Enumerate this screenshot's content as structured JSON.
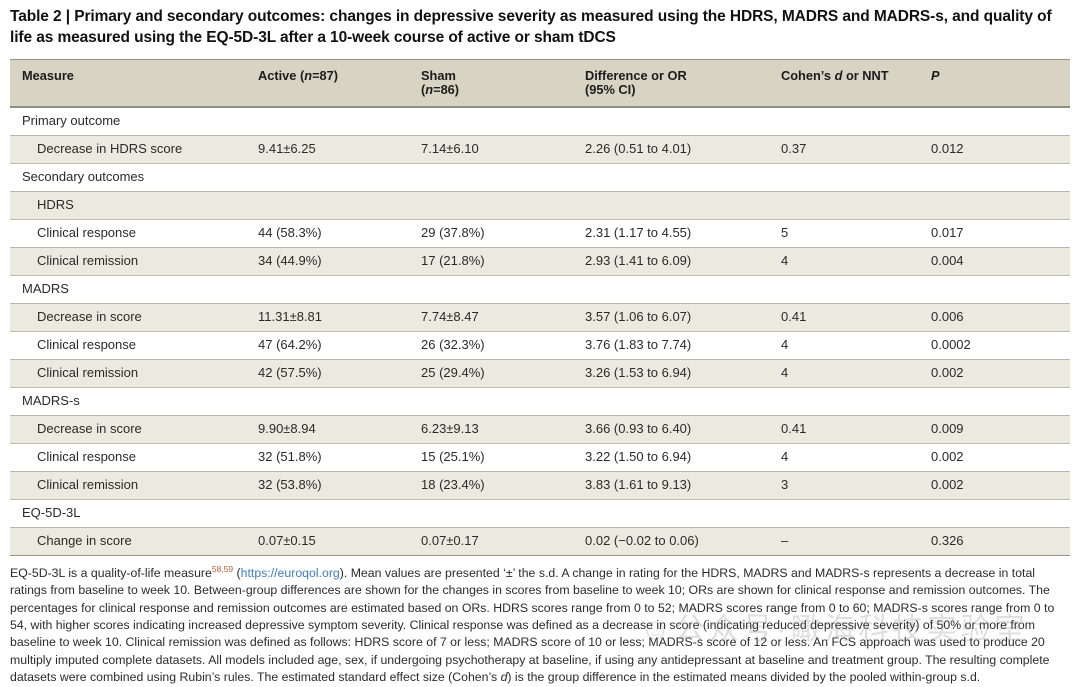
{
  "title": "Table 2 | Primary and secondary outcomes: changes in depressive severity as measured using the HDRS, MADRS and MADRS-s, and quality of life as measured using the EQ-5D-3L after a 10-week course of active or sham tDCS",
  "colors": {
    "header_bg": "#d7d4c3",
    "shaded_row_bg": "#ebeadf",
    "heavy_border": "#8f8e85",
    "light_border": "#bbb9ad",
    "reference_orange": "#c65a3d",
    "link_blue": "#3f7cc0"
  },
  "table": {
    "header": {
      "measure": "Measure",
      "active_pre": "Active (",
      "n1": "n",
      "active_post": "=87)",
      "sham_line1": "Sham",
      "sham_pre": "(",
      "n2": "n",
      "sham_post": "=86)",
      "diff_line1": "Difference or OR",
      "diff_line2": "(95% CI)",
      "cohen_pre": "Cohen’s ",
      "cohen_d": "d",
      "cohen_post": " or NNT",
      "p": "P"
    },
    "rows": [
      {
        "label": "Primary outcome",
        "indent": 0,
        "shaded": false,
        "cells": [
          "",
          "",
          "",
          "",
          ""
        ]
      },
      {
        "label": "Decrease in HDRS score",
        "indent": 1,
        "shaded": true,
        "cells": [
          "9.41±6.25",
          "7.14±6.10",
          "2.26 (0.51 to 4.01)",
          "0.37",
          "0.012"
        ]
      },
      {
        "label": "Secondary outcomes",
        "indent": 0,
        "shaded": false,
        "cells": [
          "",
          "",
          "",
          "",
          ""
        ]
      },
      {
        "label": "HDRS",
        "indent": 1,
        "shaded": true,
        "cells": [
          "",
          "",
          "",
          "",
          ""
        ]
      },
      {
        "label": "Clinical response",
        "indent": 1,
        "shaded": false,
        "cells": [
          "44 (58.3%)",
          "29 (37.8%)",
          "2.31 (1.17 to 4.55)",
          "5",
          "0.017"
        ]
      },
      {
        "label": "Clinical remission",
        "indent": 1,
        "shaded": true,
        "cells": [
          "34 (44.9%)",
          "17 (21.8%)",
          "2.93 (1.41 to 6.09)",
          "4",
          "0.004"
        ]
      },
      {
        "label": "MADRS",
        "indent": 0,
        "shaded": false,
        "cells": [
          "",
          "",
          "",
          "",
          ""
        ]
      },
      {
        "label": "Decrease in score",
        "indent": 1,
        "shaded": true,
        "cells": [
          "11.31±8.81",
          "7.74±8.47",
          "3.57 (1.06 to 6.07)",
          "0.41",
          "0.006"
        ]
      },
      {
        "label": "Clinical response",
        "indent": 1,
        "shaded": false,
        "cells": [
          "47 (64.2%)",
          "26 (32.3%)",
          "3.76 (1.83 to 7.74)",
          "4",
          "0.0002"
        ]
      },
      {
        "label": "Clinical remission",
        "indent": 1,
        "shaded": true,
        "cells": [
          "42 (57.5%)",
          "25 (29.4%)",
          "3.26 (1.53 to 6.94)",
          "4",
          "0.002"
        ]
      },
      {
        "label": "MADRS-s",
        "indent": 0,
        "shaded": false,
        "cells": [
          "",
          "",
          "",
          "",
          ""
        ]
      },
      {
        "label": "Decrease in score",
        "indent": 1,
        "shaded": true,
        "cells": [
          "9.90±8.94",
          "6.23±9.13",
          "3.66 (0.93 to 6.40)",
          "0.41",
          "0.009"
        ]
      },
      {
        "label": "Clinical response",
        "indent": 1,
        "shaded": false,
        "cells": [
          "32 (51.8%)",
          "15 (25.1%)",
          "3.22 (1.50 to 6.94)",
          "4",
          "0.002"
        ]
      },
      {
        "label": "Clinical remission",
        "indent": 1,
        "shaded": true,
        "cells": [
          "32 (53.8%)",
          "18 (23.4%)",
          "3.83 (1.61 to 9.13)",
          "3",
          "0.002"
        ]
      },
      {
        "label": "EQ-5D-3L",
        "indent": 0,
        "shaded": false,
        "cells": [
          "",
          "",
          "",
          "",
          ""
        ]
      },
      {
        "label": "Change in score",
        "indent": 1,
        "shaded": true,
        "cells": [
          "0.07±0.15",
          "0.07±0.17",
          "0.02 (−0.02 to 0.06)",
          "–",
          "0.326"
        ]
      }
    ]
  },
  "footnote": {
    "part1": "EQ-5D-3L is a quality-of-life measure",
    "refs": "58,59",
    "part2": " (",
    "link": "https://euroqol.org",
    "part3": "). Mean values are presented ‘±’ the s.d. A change in rating for the HDRS, MADRS and MADRS-s represents a decrease in total ratings from baseline to week 10. Between-group differences are shown for the changes in scores from baseline to week 10; ORs are shown for clinical response and remission outcomes. The percentages for clinical response and remission outcomes are estimated based on ORs. HDRS scores range from 0 to 52; MADRS scores range from 0 to 60; MADRS-s scores range from 0 to 54, with higher scores indicating increased depressive symptom severity. Clinical response was defined as a decrease in score (indicating reduced depressive severity) of 50% or more from baseline to week 10. Clinical remission was defined as follows: HDRS score of 7 or less; MADRS score of 10 or less; MADRS-s score of 12 or less. An FCS approach was used to produce 20 multiply imputed complete datasets. All models included age, sex, if undergoing psychotherapy at baseline, if using any antidepressant at baseline and treatment group. The resulting complete datasets were combined using Rubin’s rules. The estimated standard effect size (Cohen’s ",
    "italic_d": "d",
    "part4": ") is the group difference in the estimated means divided by the pooled within-group s.d."
  },
  "watermark": "☺公众号·瞰海科技实验室"
}
